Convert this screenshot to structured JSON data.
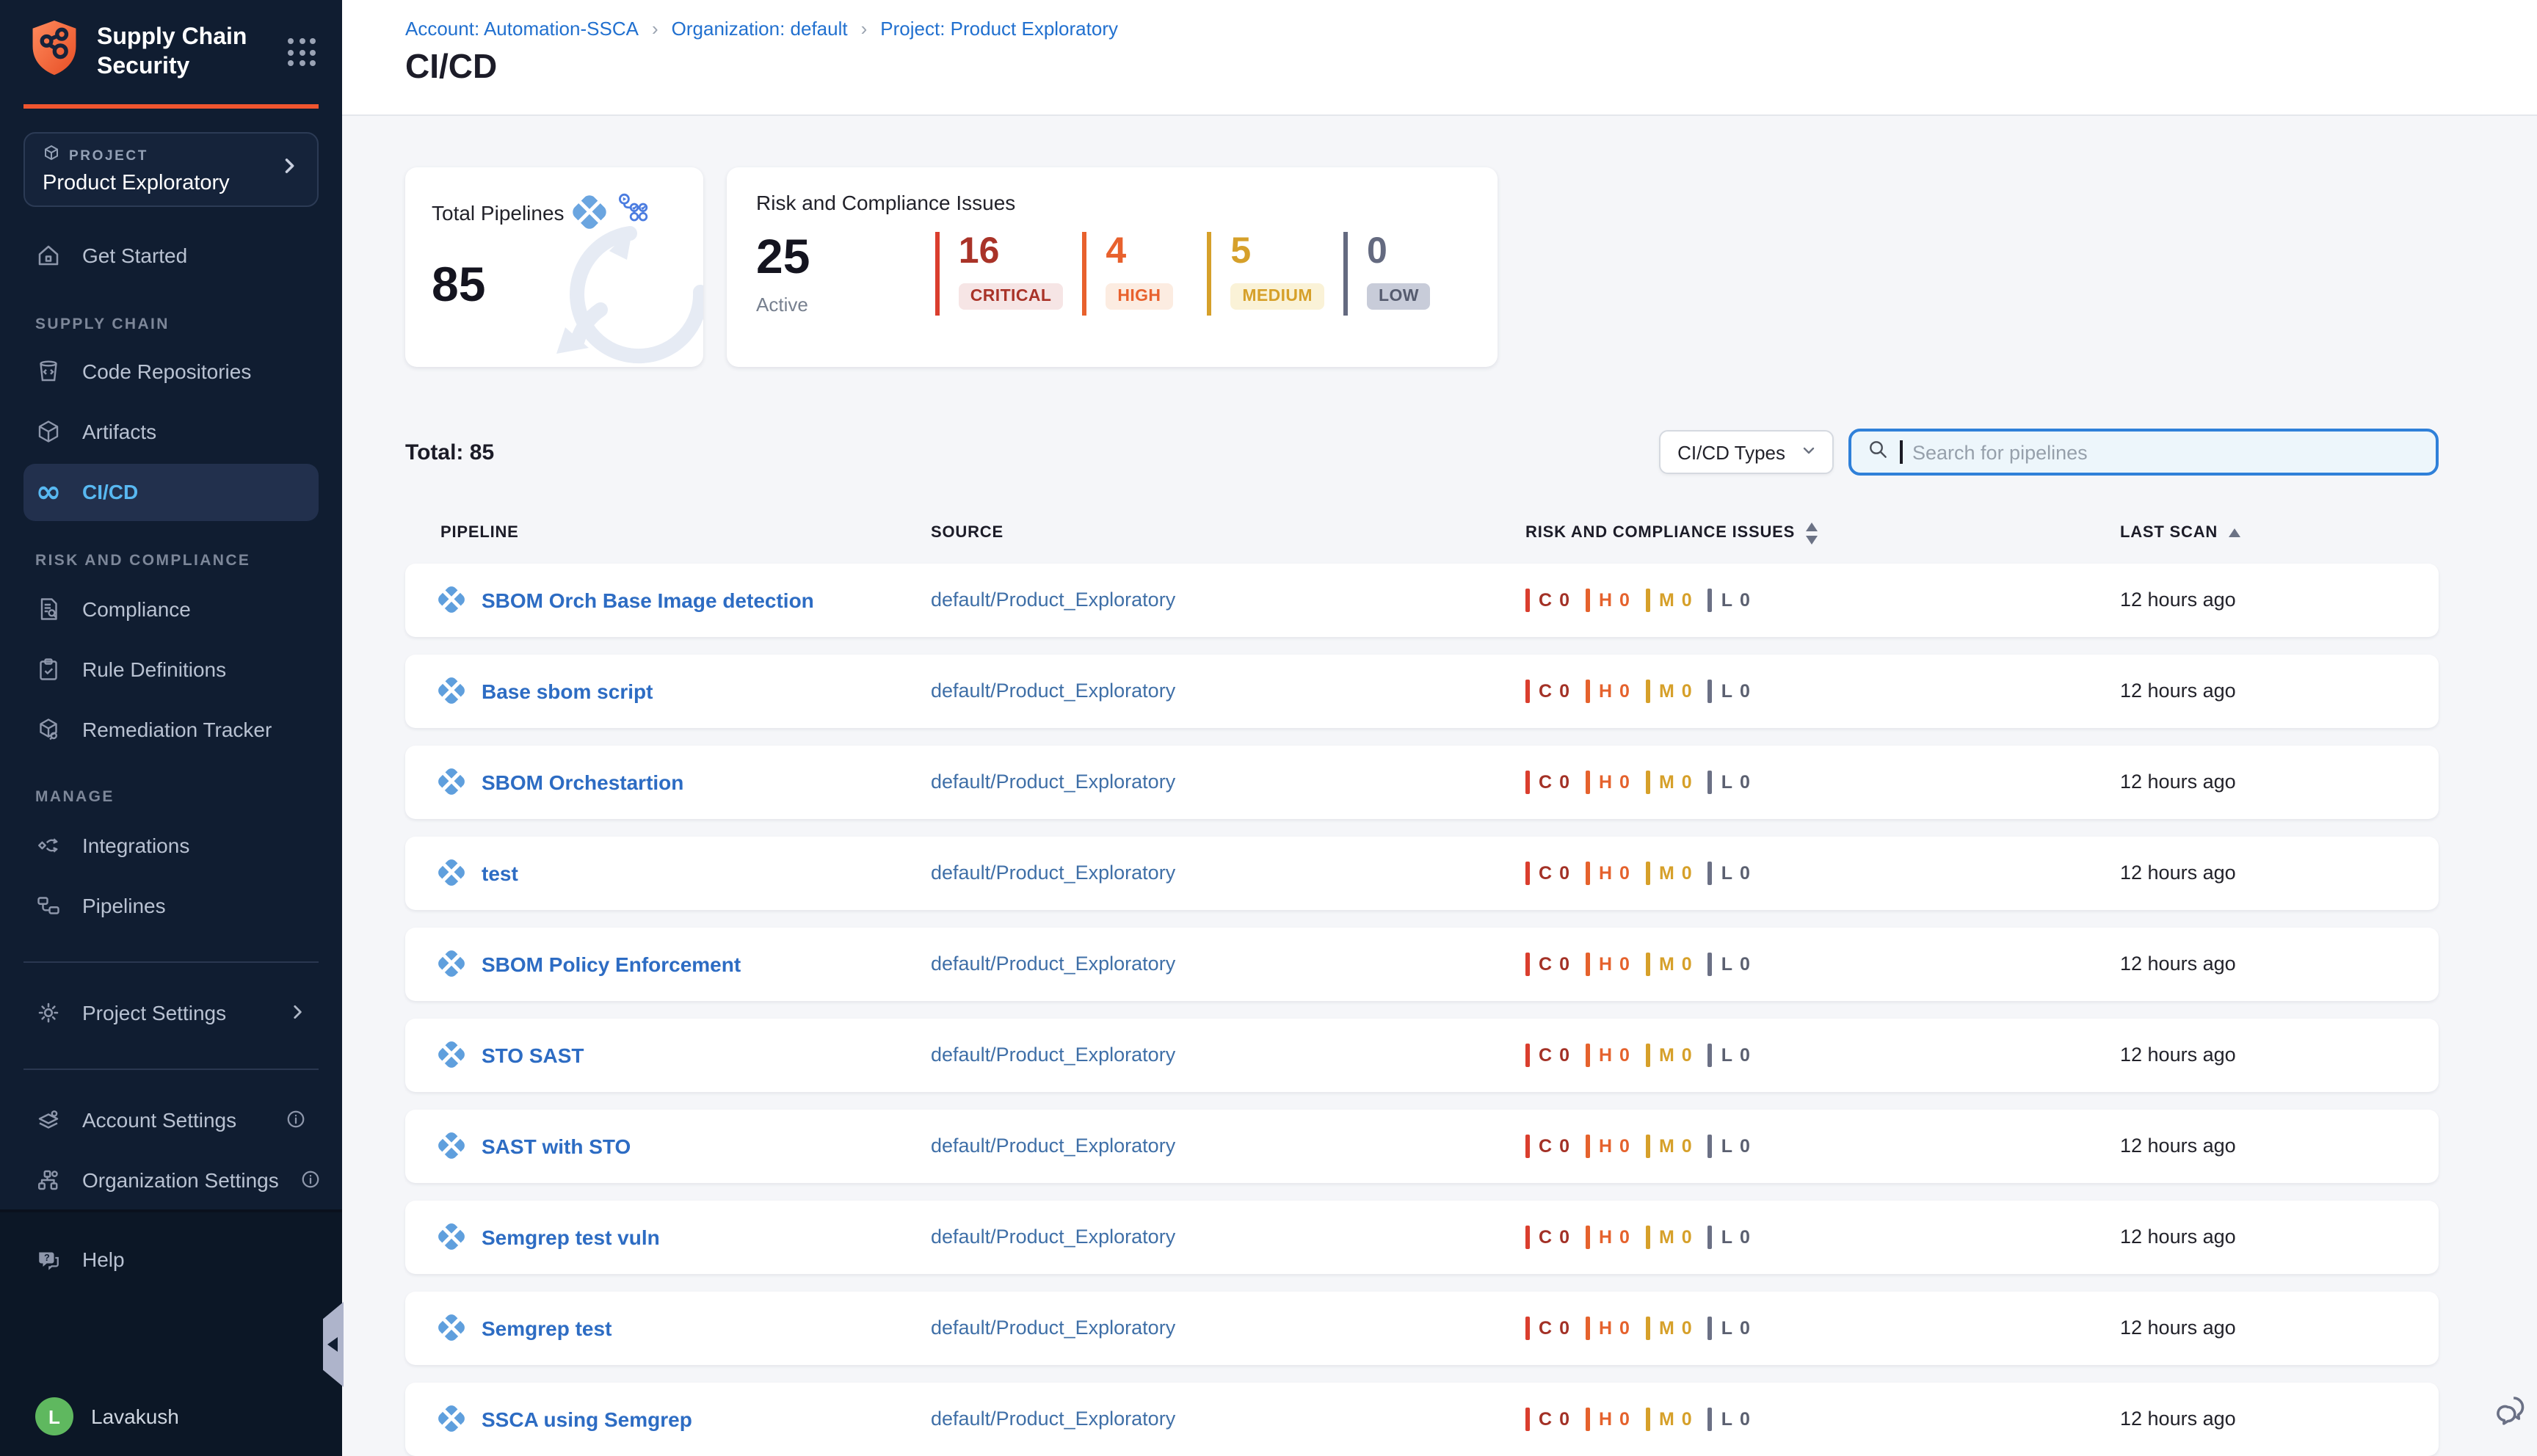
{
  "sidebar": {
    "title_line1": "Supply Chain",
    "title_line2": "Security",
    "project": {
      "label": "PROJECT",
      "name": "Product Exploratory"
    },
    "get_started": "Get Started",
    "sections": [
      {
        "label": "SUPPLY CHAIN",
        "items": [
          {
            "label": "Code Repositories"
          },
          {
            "label": "Artifacts"
          },
          {
            "label": "CI/CD"
          }
        ]
      },
      {
        "label": "RISK AND COMPLIANCE",
        "items": [
          {
            "label": "Compliance"
          },
          {
            "label": "Rule Definitions"
          },
          {
            "label": "Remediation Tracker"
          }
        ]
      },
      {
        "label": "MANAGE",
        "items": [
          {
            "label": "Integrations"
          },
          {
            "label": "Pipelines"
          }
        ]
      }
    ],
    "project_settings": "Project Settings",
    "account_settings": "Account Settings",
    "organization_settings": "Organization Settings",
    "help": "Help",
    "user": {
      "name": "Lavakush",
      "initial": "L",
      "avatar_color": "#5fb85f"
    }
  },
  "header": {
    "breadcrumb": [
      "Account: Automation-SSCA",
      "Organization: default",
      "Project: Product Exploratory"
    ],
    "separator": "›",
    "title": "CI/CD"
  },
  "summary": {
    "total_pipelines": {
      "label": "Total Pipelines",
      "value": "85"
    },
    "risk": {
      "label": "Risk and Compliance Issues",
      "active_value": "25",
      "active_label": "Active",
      "severities": [
        {
          "level": "CRITICAL",
          "count": "16",
          "color": "#a93328",
          "bar": "#da3e2e",
          "bg": "#f6e5e5"
        },
        {
          "level": "HIGH",
          "count": "4",
          "color": "#e8612d",
          "bar": "#e8612d",
          "bg": "#fcece1"
        },
        {
          "level": "MEDIUM",
          "count": "5",
          "color": "#d6a02a",
          "bar": "#d6a02a",
          "bg": "#faf2d7"
        },
        {
          "level": "LOW",
          "count": "0",
          "color": "#646a80",
          "bar": "#646a80",
          "bg": "#c8ccd9",
          "text_color": "#555b6e"
        }
      ]
    }
  },
  "toolbar": {
    "total": "Total: 85",
    "type_filter": "CI/CD Types",
    "search_placeholder": "Search for pipelines"
  },
  "table": {
    "columns": [
      "PIPELINE",
      "SOURCE",
      "RISK AND COMPLIANCE ISSUES",
      "LAST SCAN"
    ],
    "severity_display": [
      {
        "letter": "C",
        "color": "#a33126",
        "bar": "#da3e2e"
      },
      {
        "letter": "H",
        "color": "#e5622d",
        "bar": "#e5622d"
      },
      {
        "letter": "M",
        "color": "#d6a02a",
        "bar": "#d6a02a"
      },
      {
        "letter": "L",
        "color": "#5b6070",
        "bar": "#6b7085"
      }
    ],
    "rows": [
      {
        "name": "SBOM Orch Base Image detection",
        "source": "default/Product_Exploratory",
        "issues": [
          0,
          0,
          0,
          0
        ],
        "last_scan": "12 hours ago"
      },
      {
        "name": "Base sbom script",
        "source": "default/Product_Exploratory",
        "issues": [
          0,
          0,
          0,
          0
        ],
        "last_scan": "12 hours ago"
      },
      {
        "name": "SBOM Orchestartion",
        "source": "default/Product_Exploratory",
        "issues": [
          0,
          0,
          0,
          0
        ],
        "last_scan": "12 hours ago"
      },
      {
        "name": "test",
        "source": "default/Product_Exploratory",
        "issues": [
          0,
          0,
          0,
          0
        ],
        "last_scan": "12 hours ago"
      },
      {
        "name": "SBOM Policy Enforcement",
        "source": "default/Product_Exploratory",
        "issues": [
          0,
          0,
          0,
          0
        ],
        "last_scan": "12 hours ago"
      },
      {
        "name": "STO SAST",
        "source": "default/Product_Exploratory",
        "issues": [
          0,
          0,
          0,
          0
        ],
        "last_scan": "12 hours ago"
      },
      {
        "name": "SAST with STO",
        "source": "default/Product_Exploratory",
        "issues": [
          0,
          0,
          0,
          0
        ],
        "last_scan": "12 hours ago"
      },
      {
        "name": "Semgrep test vuln",
        "source": "default/Product_Exploratory",
        "issues": [
          0,
          0,
          0,
          0
        ],
        "last_scan": "12 hours ago"
      },
      {
        "name": "Semgrep test",
        "source": "default/Product_Exploratory",
        "issues": [
          0,
          0,
          0,
          0
        ],
        "last_scan": "12 hours ago"
      },
      {
        "name": "SSCA using Semgrep",
        "source": "default/Product_Exploratory",
        "issues": [
          0,
          0,
          0,
          0
        ],
        "last_scan": "12 hours ago"
      }
    ]
  }
}
